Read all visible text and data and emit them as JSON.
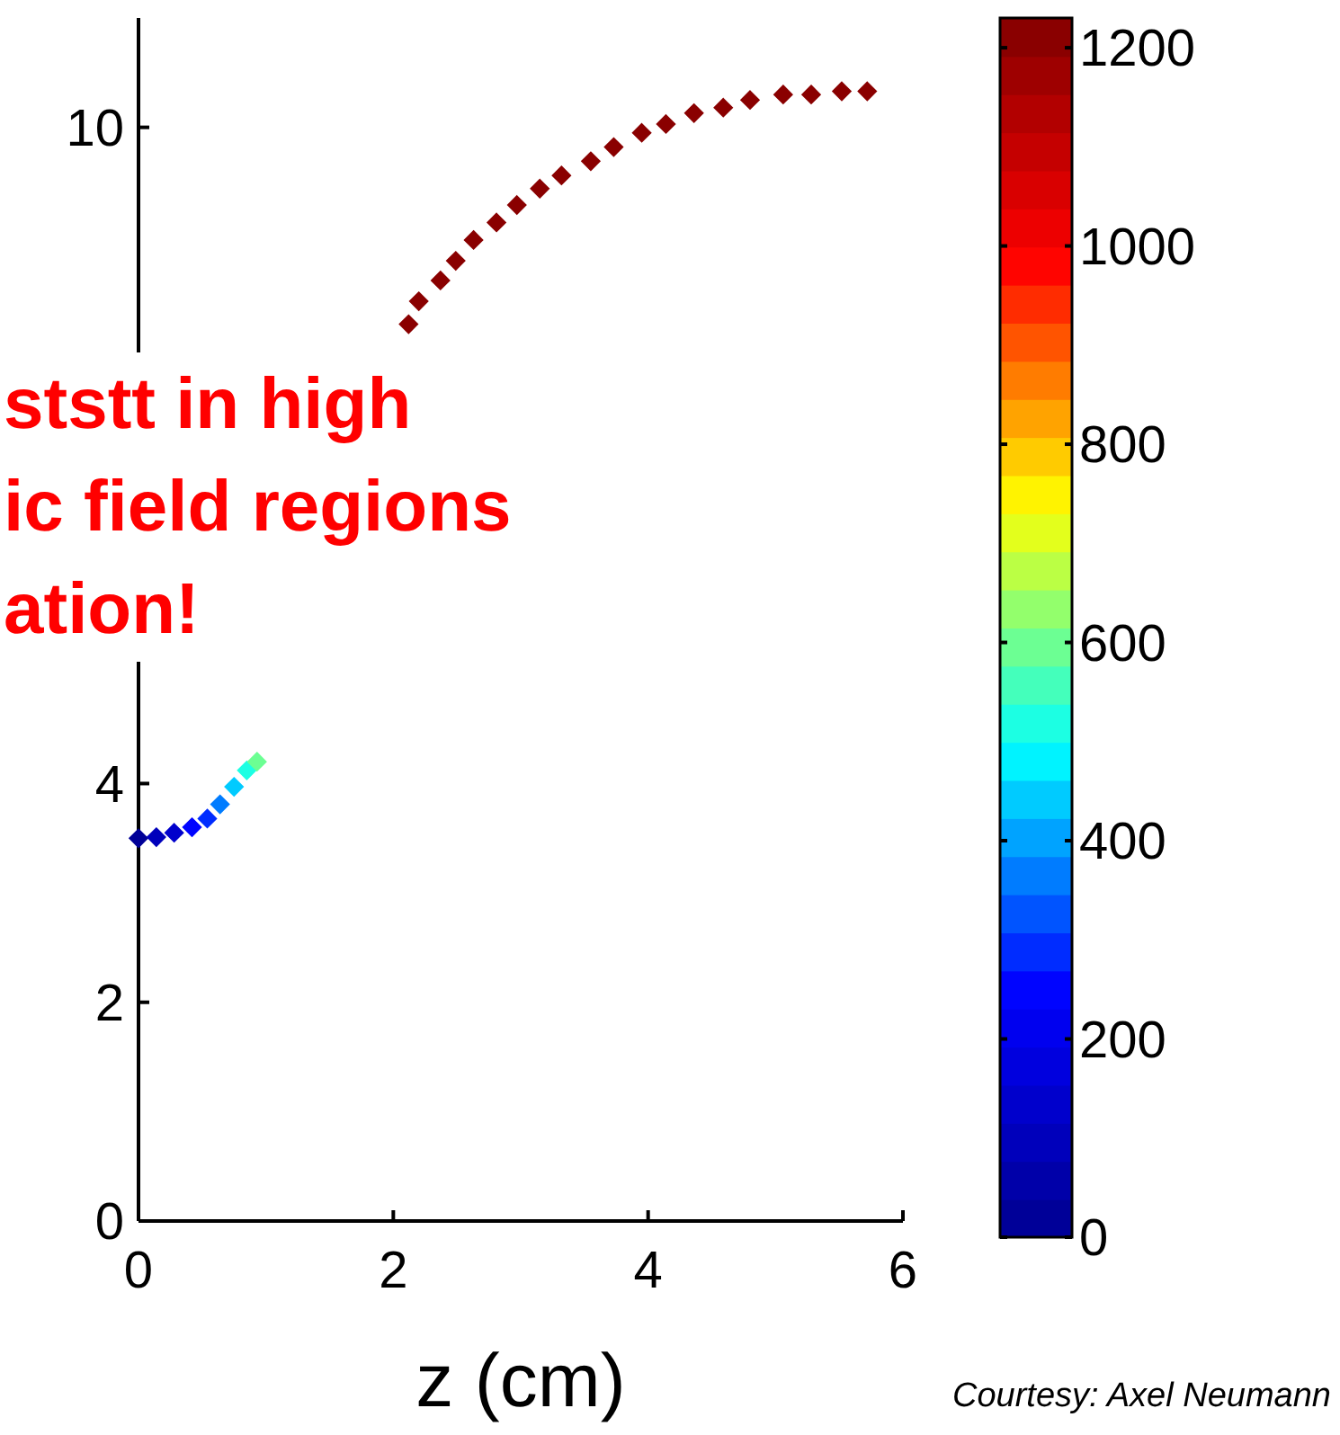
{
  "chart_data": {
    "type": "scatter",
    "xlabel": "z (cm)",
    "xlim": [
      0,
      6
    ],
    "xticks": [
      0,
      2,
      4,
      6
    ],
    "ylim": [
      0,
      11
    ],
    "yticks": [
      0,
      2,
      4,
      10
    ],
    "clim": [
      0,
      1230
    ],
    "cticks": [
      0,
      200,
      400,
      600,
      800,
      1000,
      1200
    ],
    "marker": "diamond",
    "series": [
      {
        "x": [
          0.0,
          0.14,
          0.28,
          0.42,
          0.54,
          0.64,
          0.75,
          0.85,
          0.93
        ],
        "values": [
          3.5,
          3.51,
          3.55,
          3.6,
          3.68,
          3.81,
          3.97,
          4.12,
          4.2
        ],
        "cvalues": [
          30,
          80,
          150,
          250,
          300,
          350,
          430,
          520,
          600
        ],
        "colors": [
          "#000098",
          "#0000bb",
          "#0000cc",
          "#0004ff",
          "#002cff",
          "#007cff",
          "#00cbff",
          "#1cffe3",
          "#6cff93"
        ]
      },
      {
        "x": [
          2.12,
          2.2,
          2.37,
          2.49,
          2.63,
          2.81,
          2.97,
          3.15,
          3.32,
          3.55,
          3.73,
          3.95,
          4.14,
          4.36,
          4.59,
          4.8,
          5.06,
          5.28,
          5.52,
          5.72
        ],
        "values": [
          8.2,
          8.41,
          8.6,
          8.78,
          8.97,
          9.13,
          9.29,
          9.44,
          9.56,
          9.69,
          9.82,
          9.95,
          10.03,
          10.13,
          10.18,
          10.25,
          10.3,
          10.3,
          10.33,
          10.33
        ],
        "cvalues": [
          1210,
          1210,
          1210,
          1210,
          1210,
          1210,
          1210,
          1210,
          1210,
          1210,
          1210,
          1210,
          1210,
          1210,
          1210,
          1210,
          1210,
          1210,
          1210,
          1210
        ],
        "color": "#8a0000"
      }
    ],
    "annotations": [
      "ststt in high",
      "ic field regions",
      "ation!",
      "Courtesy: Axel Neumann"
    ]
  }
}
